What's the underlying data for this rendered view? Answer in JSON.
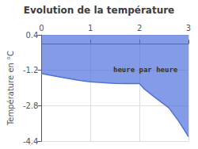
{
  "chart_data": {
    "type": "line",
    "title": "Evolution de la température",
    "y_label": "Température en °C",
    "annotation": "heure par heure",
    "x": [
      0,
      0.25,
      0.5,
      0.75,
      1.0,
      1.25,
      1.5,
      1.75,
      2.0,
      2.1,
      2.3,
      2.6,
      2.8,
      3.0
    ],
    "values": [
      -1.35,
      -1.45,
      -1.55,
      -1.65,
      -1.72,
      -1.76,
      -1.79,
      -1.8,
      -1.8,
      -2.05,
      -2.4,
      -2.9,
      -3.5,
      -4.2
    ],
    "xlim": [
      0,
      3
    ],
    "xticks": [
      0,
      1,
      2,
      3
    ],
    "ylim": [
      -4.4,
      0.4
    ],
    "yticks": [
      0.4,
      -1.2,
      -2.8,
      -4.4
    ],
    "grid": true
  }
}
